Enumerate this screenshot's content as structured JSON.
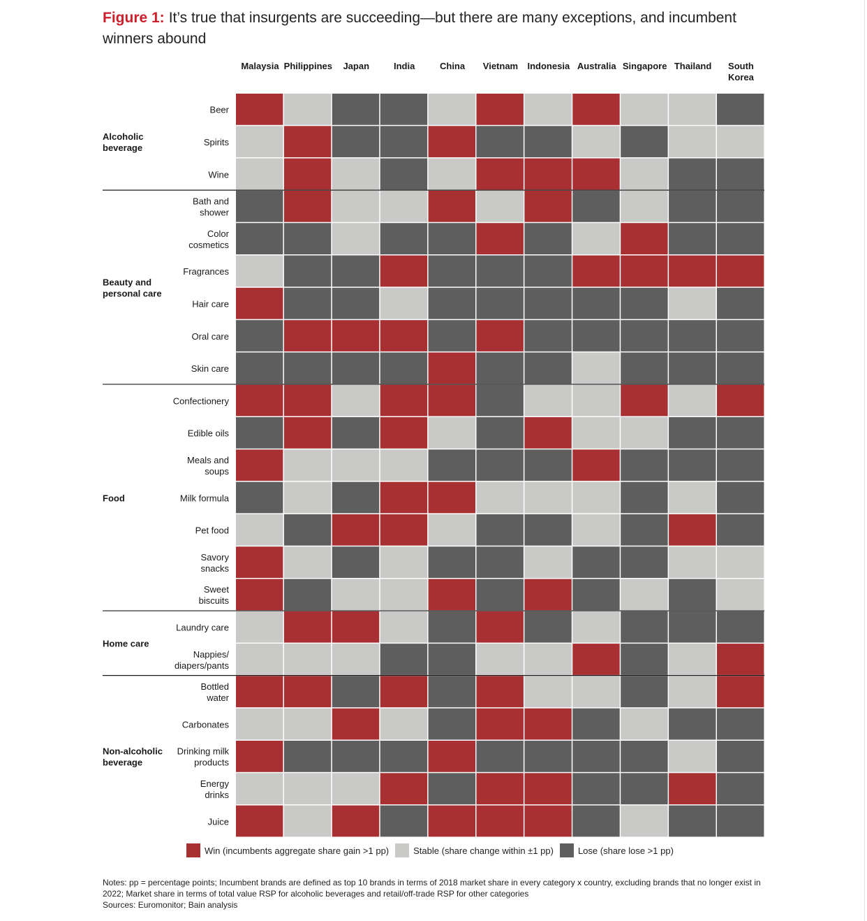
{
  "title": {
    "lead": "Figure 1:",
    "text": "It’s true that insurgents are succeeding—but there are many exceptions, and incumbent winners abound"
  },
  "colors": {
    "W": "#a83032",
    "S": "#c9c9c7",
    "L": "#5e5e5e",
    "title_accent": "#cc1f2b"
  },
  "chart_data": {
    "type": "heatmap",
    "x": [
      "Malaysia",
      "Philippines",
      "Japan",
      "India",
      "China",
      "Vietnam",
      "Indonesia",
      "Australia",
      "Singapore",
      "Thailand",
      "South Korea"
    ],
    "groups": [
      {
        "name": "Alcoholic beverage",
        "rows": [
          {
            "label": "Beer",
            "values": [
              "W",
              "S",
              "L",
              "L",
              "S",
              "W",
              "S",
              "W",
              "S",
              "S",
              "L"
            ]
          },
          {
            "label": "Spirits",
            "values": [
              "S",
              "W",
              "L",
              "L",
              "W",
              "L",
              "L",
              "S",
              "L",
              "S",
              "S"
            ]
          },
          {
            "label": "Wine",
            "values": [
              "S",
              "W",
              "S",
              "L",
              "S",
              "W",
              "W",
              "W",
              "S",
              "L",
              "L"
            ]
          }
        ]
      },
      {
        "name": "Beauty and personal care",
        "rows": [
          {
            "label": "Bath and shower",
            "values": [
              "L",
              "W",
              "S",
              "S",
              "W",
              "S",
              "W",
              "L",
              "S",
              "L",
              "L"
            ]
          },
          {
            "label": "Color cosmetics",
            "values": [
              "L",
              "L",
              "S",
              "L",
              "L",
              "W",
              "L",
              "S",
              "W",
              "L",
              "L"
            ]
          },
          {
            "label": "Fragrances",
            "values": [
              "S",
              "L",
              "L",
              "W",
              "L",
              "L",
              "L",
              "W",
              "W",
              "W",
              "W"
            ]
          },
          {
            "label": "Hair care",
            "values": [
              "W",
              "L",
              "L",
              "S",
              "L",
              "L",
              "L",
              "L",
              "L",
              "S",
              "L"
            ]
          },
          {
            "label": "Oral care",
            "values": [
              "L",
              "W",
              "W",
              "W",
              "L",
              "W",
              "L",
              "L",
              "L",
              "L",
              "L"
            ]
          },
          {
            "label": "Skin care",
            "values": [
              "L",
              "L",
              "L",
              "L",
              "W",
              "L",
              "L",
              "S",
              "L",
              "L",
              "L"
            ]
          }
        ]
      },
      {
        "name": "Food",
        "rows": [
          {
            "label": "Confectionery",
            "values": [
              "W",
              "W",
              "S",
              "W",
              "W",
              "L",
              "S",
              "S",
              "W",
              "S",
              "W"
            ]
          },
          {
            "label": "Edible oils",
            "values": [
              "L",
              "W",
              "L",
              "W",
              "S",
              "L",
              "W",
              "S",
              "S",
              "L",
              "L"
            ]
          },
          {
            "label": "Meals and soups",
            "values": [
              "W",
              "S",
              "S",
              "S",
              "L",
              "L",
              "L",
              "W",
              "L",
              "L",
              "L"
            ]
          },
          {
            "label": "Milk formula",
            "values": [
              "L",
              "S",
              "L",
              "W",
              "W",
              "S",
              "S",
              "S",
              "L",
              "S",
              "L"
            ]
          },
          {
            "label": "Pet food",
            "values": [
              "S",
              "L",
              "W",
              "W",
              "S",
              "L",
              "L",
              "S",
              "L",
              "W",
              "L"
            ]
          },
          {
            "label": "Savory snacks",
            "values": [
              "W",
              "S",
              "L",
              "S",
              "L",
              "L",
              "S",
              "L",
              "L",
              "S",
              "S"
            ]
          },
          {
            "label": "Sweet biscuits",
            "values": [
              "W",
              "L",
              "S",
              "S",
              "W",
              "L",
              "W",
              "L",
              "S",
              "L",
              "S"
            ]
          }
        ]
      },
      {
        "name": "Home care",
        "rows": [
          {
            "label": "Laundry care",
            "values": [
              "S",
              "W",
              "W",
              "S",
              "L",
              "W",
              "L",
              "S",
              "L",
              "L",
              "L"
            ]
          },
          {
            "label": "Nappies/ diapers/pants",
            "values": [
              "S",
              "S",
              "S",
              "L",
              "L",
              "S",
              "S",
              "W",
              "L",
              "S",
              "W"
            ]
          }
        ]
      },
      {
        "name": "Non-alcoholic beverage",
        "rows": [
          {
            "label": "Bottled water",
            "values": [
              "W",
              "W",
              "L",
              "W",
              "L",
              "W",
              "S",
              "S",
              "L",
              "S",
              "W"
            ]
          },
          {
            "label": "Carbonates",
            "values": [
              "S",
              "S",
              "W",
              "S",
              "L",
              "W",
              "W",
              "L",
              "S",
              "L",
              "L"
            ]
          },
          {
            "label": "Drinking milk products",
            "values": [
              "W",
              "L",
              "L",
              "L",
              "W",
              "L",
              "L",
              "L",
              "L",
              "S",
              "L"
            ]
          },
          {
            "label": "Energy drinks",
            "values": [
              "S",
              "S",
              "S",
              "W",
              "L",
              "W",
              "W",
              "L",
              "L",
              "W",
              "L"
            ]
          },
          {
            "label": "Juice",
            "values": [
              "W",
              "S",
              "W",
              "L",
              "W",
              "W",
              "W",
              "L",
              "S",
              "L",
              "L"
            ]
          }
        ]
      }
    ],
    "legend": [
      {
        "key": "W",
        "label": "Win (incumbents aggregate share gain >1 pp)"
      },
      {
        "key": "S",
        "label": "Stable (share change within ±1 pp)"
      },
      {
        "key": "L",
        "label": "Lose (share lose >1 pp)"
      }
    ]
  },
  "notes": {
    "line1": "Notes: pp = percentage points; Incumbent brands are defined as top 10 brands in terms of 2018 market share in every category x country, excluding brands that no longer exist in 2022; Market share in terms of total value RSP for alcoholic beverages and retail/off-trade RSP for other categories",
    "line2": "Sources: Euromonitor; Bain analysis"
  }
}
